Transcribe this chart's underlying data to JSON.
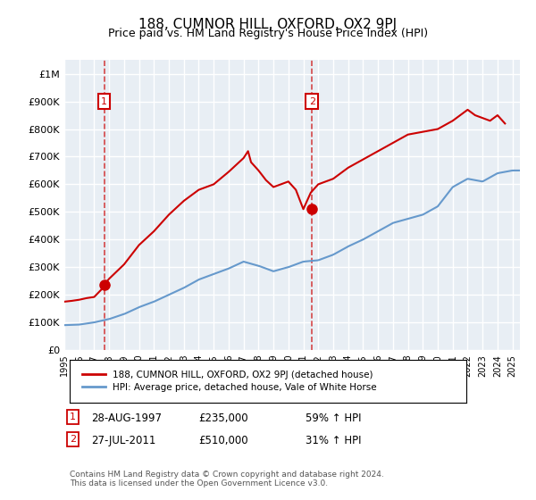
{
  "title": "188, CUMNOR HILL, OXFORD, OX2 9PJ",
  "subtitle": "Price paid vs. HM Land Registry's House Price Index (HPI)",
  "background_color": "#f0f4f8",
  "plot_bg_color": "#e8eef4",
  "grid_color": "#ffffff",
  "red_line_color": "#cc0000",
  "blue_line_color": "#6699cc",
  "sale1_date": "1997-08-28",
  "sale1_price": 235000,
  "sale1_label": "1",
  "sale1_pct": "59% ↑ HPI",
  "sale2_date": "2011-07-27",
  "sale2_price": 510000,
  "sale2_label": "2",
  "sale2_pct": "31% ↑ HPI",
  "ylabel_ticks": [
    0,
    100000,
    200000,
    300000,
    400000,
    500000,
    600000,
    700000,
    800000,
    900000,
    1000000
  ],
  "ylabel_labels": [
    "£0",
    "£100K",
    "£200K",
    "£300K",
    "£400K",
    "£500K",
    "£600K",
    "£700K",
    "£800K",
    "£900K",
    "£1M"
  ],
  "ylim": [
    0,
    1050000
  ],
  "legend_label1": "188, CUMNOR HILL, OXFORD, OX2 9PJ (detached house)",
  "legend_label2": "HPI: Average price, detached house, Vale of White Horse",
  "footer": "Contains HM Land Registry data © Crown copyright and database right 2024.\nThis data is licensed under the Open Government Licence v3.0.",
  "hpi_years": [
    1995,
    1996,
    1997,
    1998,
    1999,
    2000,
    2001,
    2002,
    2003,
    2004,
    2005,
    2006,
    2007,
    2008,
    2009,
    2010,
    2011,
    2012,
    2013,
    2014,
    2015,
    2016,
    2017,
    2018,
    2019,
    2020,
    2021,
    2022,
    2023,
    2024,
    2025
  ],
  "hpi_values": [
    90000,
    92000,
    100000,
    112000,
    130000,
    155000,
    175000,
    200000,
    225000,
    255000,
    275000,
    295000,
    320000,
    305000,
    285000,
    300000,
    320000,
    325000,
    345000,
    375000,
    400000,
    430000,
    460000,
    475000,
    490000,
    520000,
    590000,
    620000,
    610000,
    640000,
    650000
  ],
  "price_years_pre": [
    1995.0,
    1995.5,
    1996.0,
    1996.5,
    1997.0,
    1997.5,
    1998.0
  ],
  "price_values_pre": [
    175000,
    178000,
    182000,
    188000,
    192000,
    220000,
    235000
  ],
  "price_years_post": [
    1997.65,
    1998.0,
    1999.0,
    2000.0,
    2001.0,
    2002.0,
    2003.0,
    2004.0,
    2005.0,
    2006.0,
    2007.0,
    2007.3,
    2007.5,
    2008.0,
    2008.5,
    2009.0,
    2009.5,
    2010.0,
    2010.5,
    2011.0,
    2011.5,
    2012.0,
    2013.0,
    2014.0,
    2015.0,
    2016.0,
    2017.0,
    2018.0,
    2019.0,
    2020.0,
    2021.0,
    2022.0,
    2022.5,
    2023.0,
    2023.5,
    2024.0,
    2024.5
  ],
  "price_values_post": [
    235000,
    258000,
    310000,
    380000,
    430000,
    490000,
    540000,
    580000,
    600000,
    645000,
    695000,
    720000,
    680000,
    650000,
    615000,
    590000,
    600000,
    610000,
    580000,
    510000,
    570000,
    600000,
    620000,
    660000,
    690000,
    720000,
    750000,
    780000,
    790000,
    800000,
    830000,
    870000,
    850000,
    840000,
    830000,
    850000,
    820000
  ]
}
